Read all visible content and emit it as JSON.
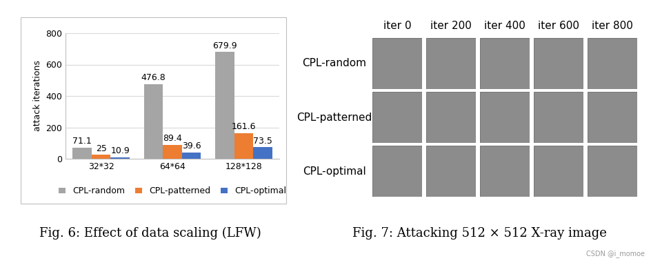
{
  "chart_data": {
    "type": "bar",
    "categories": [
      "32*32",
      "64*64",
      "128*128"
    ],
    "y_label": "attack iterations",
    "series": [
      {
        "name": "CPL-random",
        "color": "#a5a5a5",
        "values": [
          71.1,
          476.8,
          679.9
        ]
      },
      {
        "name": "CPL-patterned",
        "color": "#ed7d31",
        "values": [
          25,
          89.4,
          161.6
        ]
      },
      {
        "name": "CPL-optimal",
        "color": "#4472c4",
        "values": [
          10.9,
          39.6,
          73.5
        ]
      }
    ],
    "ylim": [
      0,
      800
    ],
    "yticks": [
      0,
      200,
      400,
      600,
      800
    ],
    "grid": true,
    "legend": "bottom",
    "data_labels": true
  },
  "image_grid": {
    "columns": [
      "iter 0",
      "iter 200",
      "iter 400",
      "iter 600",
      "iter 800"
    ],
    "rows": [
      "CPL-random",
      "CPL-patterned",
      "CPL-optimal"
    ]
  },
  "captions": [
    "Fig. 6: Effect of data scaling (LFW)",
    "Fig. 7: Attacking 512 × 512 X-ray image"
  ],
  "watermark": "CSDN @i_momoe"
}
